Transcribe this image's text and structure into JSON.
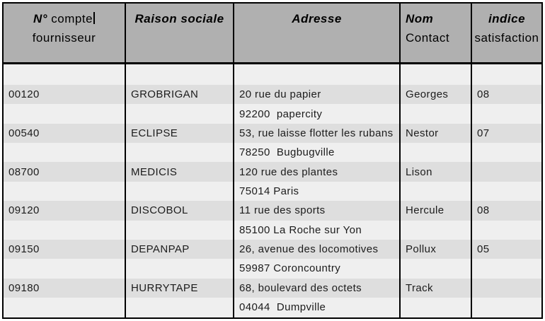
{
  "colors": {
    "header_bg": "#b0b0b0",
    "row_dark_bg": "#dedede",
    "row_light_bg": "#efefef",
    "border_color": "#000000",
    "text_color": "#1c1c1c"
  },
  "table": {
    "header": {
      "account": {
        "title": "N°",
        "title_rest": " compte",
        "subtitle": "fournisseur"
      },
      "company": {
        "title": "Raison sociale"
      },
      "address": {
        "title": "Adresse"
      },
      "contact": {
        "title": "Nom",
        "subtitle": "Contact"
      },
      "satisfaction": {
        "title": "indice",
        "subtitle": "satisfaction"
      }
    },
    "rows": [
      {
        "account": "00120",
        "company": "GROBRIGAN",
        "address1": "20 rue du papier",
        "address2": "92200  papercity",
        "contact": "Georges",
        "satisfaction": "08"
      },
      {
        "account": "00540",
        "company": "ECLIPSE",
        "address1": "53, rue laisse flotter les rubans",
        "address2": "78250  Bugbugville",
        "contact": "Nestor",
        "satisfaction": "07"
      },
      {
        "account": "08700",
        "company": "MEDICIS",
        "address1": "120 rue des plantes",
        "address2": "75014 Paris",
        "contact": "Lison",
        "satisfaction": ""
      },
      {
        "account": "09120",
        "company": "DISCOBOL",
        "address1": "11 rue des sports",
        "address2": "85100 La Roche sur Yon",
        "contact": "Hercule",
        "satisfaction": "08"
      },
      {
        "account": "09150",
        "company": "DEPANPAP",
        "address1": "26, avenue des locomotives",
        "address2": "59987 Coroncountry",
        "contact": "Pollux",
        "satisfaction": "05"
      },
      {
        "account": "09180",
        "company": "HURRYTAPE",
        "address1": "68, boulevard des octets",
        "address2": "04044  Dumpville",
        "contact": "Track",
        "satisfaction": ""
      }
    ]
  }
}
